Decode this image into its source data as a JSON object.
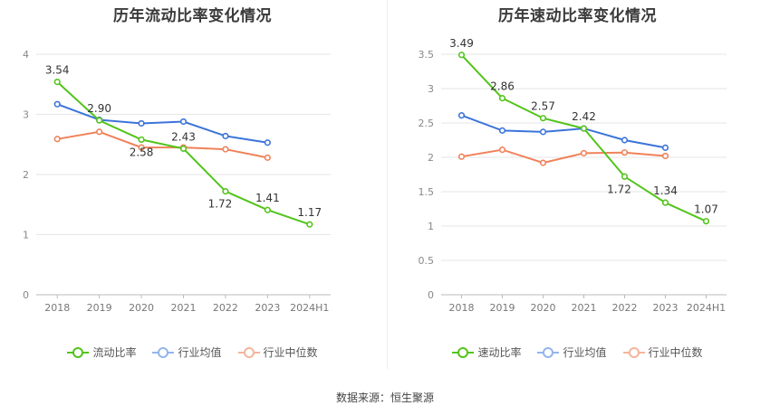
{
  "chart_data": [
    {
      "type": "line",
      "title": "历年流动比率变化情况",
      "categories": [
        "2018",
        "2019",
        "2020",
        "2021",
        "2022",
        "2023",
        "2024H1"
      ],
      "ylim": [
        0,
        4
      ],
      "yticks": [
        0,
        1,
        2,
        3,
        4
      ],
      "series": [
        {
          "name": "流动比率",
          "color": "#52c41a",
          "values": [
            3.54,
            2.9,
            2.58,
            2.43,
            1.72,
            1.41,
            1.17
          ],
          "labels": [
            "3.54",
            "2.90",
            "2.58",
            "2.43",
            "1.72",
            "1.41",
            "1.17"
          ]
        },
        {
          "name": "行业均值",
          "color": "#3b74d9",
          "values": [
            3.17,
            2.91,
            2.85,
            2.88,
            2.64,
            2.53,
            null
          ]
        },
        {
          "name": "行业中位数",
          "color": "#f0825a",
          "values": [
            2.59,
            2.71,
            2.45,
            2.45,
            2.42,
            2.28,
            null
          ]
        }
      ],
      "legend": "bottom-center"
    },
    {
      "type": "line",
      "title": "历年速动比率变化情况",
      "categories": [
        "2018",
        "2019",
        "2020",
        "2021",
        "2022",
        "2023",
        "2024H1"
      ],
      "ylim": [
        0,
        3.5
      ],
      "yticks": [
        0,
        0.5,
        1,
        1.5,
        2,
        2.5,
        3,
        3.5
      ],
      "series": [
        {
          "name": "速动比率",
          "color": "#52c41a",
          "values": [
            3.49,
            2.86,
            2.57,
            2.42,
            1.72,
            1.34,
            1.07
          ],
          "labels": [
            "3.49",
            "2.86",
            "2.57",
            "2.42",
            "1.72",
            "1.34",
            "1.07"
          ]
        },
        {
          "name": "行业均值",
          "color": "#3b74d9",
          "values": [
            2.61,
            2.39,
            2.37,
            2.42,
            2.25,
            2.14,
            null
          ]
        },
        {
          "name": "行业中位数",
          "color": "#f0825a",
          "values": [
            2.01,
            2.11,
            1.92,
            2.06,
            2.07,
            2.02,
            null
          ]
        }
      ],
      "legend": "bottom-center"
    }
  ],
  "footer": {
    "source": "数据来源：恒生聚源"
  }
}
